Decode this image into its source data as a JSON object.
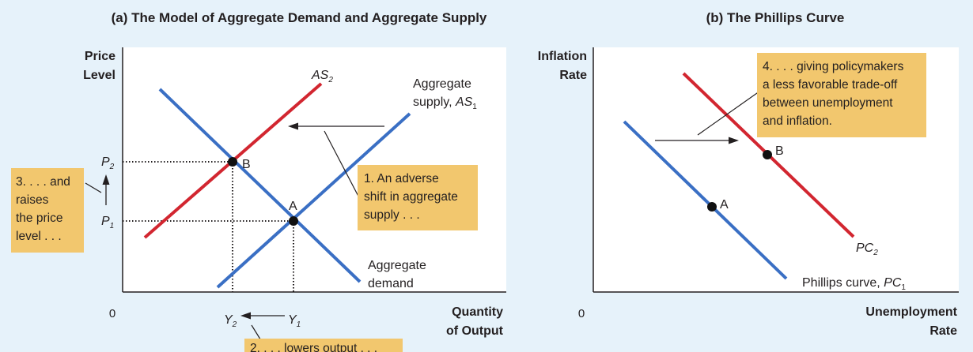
{
  "panel_a": {
    "title": "(a) The Model of Aggregate Demand and Aggregate Supply",
    "y_axis_title": [
      "Price",
      "Level"
    ],
    "x_axis_title": [
      "Quantity",
      "of Output"
    ],
    "origin": "0",
    "curve_as2": {
      "label": "AS",
      "sub": "2",
      "color": "#d22630"
    },
    "curve_as1": {
      "label_line1": "Aggregate",
      "label_line2_prefix": "supply, ",
      "label_line2_italic": "AS",
      "sub": "1",
      "color": "#3a6fc4"
    },
    "curve_ad": {
      "label_line1": "Aggregate",
      "label_line2": "demand",
      "color": "#3a6fc4"
    },
    "point_a": "A",
    "point_b": "B",
    "p2": {
      "label": "P",
      "sub": "2"
    },
    "p1": {
      "label": "P",
      "sub": "1"
    },
    "y2": {
      "label": "Y",
      "sub": "2"
    },
    "y1": {
      "label": "Y",
      "sub": "1"
    },
    "note_1": [
      "1. An adverse",
      "shift in aggregate",
      "supply . . ."
    ],
    "note_2": "2. . . . lowers output . . .",
    "note_3": [
      "3. . . . and",
      "raises",
      "the price",
      "level . . ."
    ]
  },
  "panel_b": {
    "title": "(b) The Phillips Curve",
    "y_axis_title": [
      "Inflation",
      "Rate"
    ],
    "x_axis_title": [
      "Unemployment",
      "Rate"
    ],
    "origin": "0",
    "curve_pc1": {
      "label_prefix": "Phillips curve, ",
      "label_italic": "PC",
      "sub": "1",
      "color": "#3a6fc4"
    },
    "curve_pc2": {
      "label": "PC",
      "sub": "2",
      "color": "#d22630"
    },
    "point_a": "A",
    "point_b": "B",
    "note_4": [
      "4. . . . giving policymakers",
      "a less favorable trade-off",
      "between unemployment",
      "and inflation."
    ]
  },
  "colors": {
    "background": "#e6f2fa",
    "note_fill": "#f2c76e",
    "red": "#d22630",
    "blue": "#3a6fc4"
  }
}
